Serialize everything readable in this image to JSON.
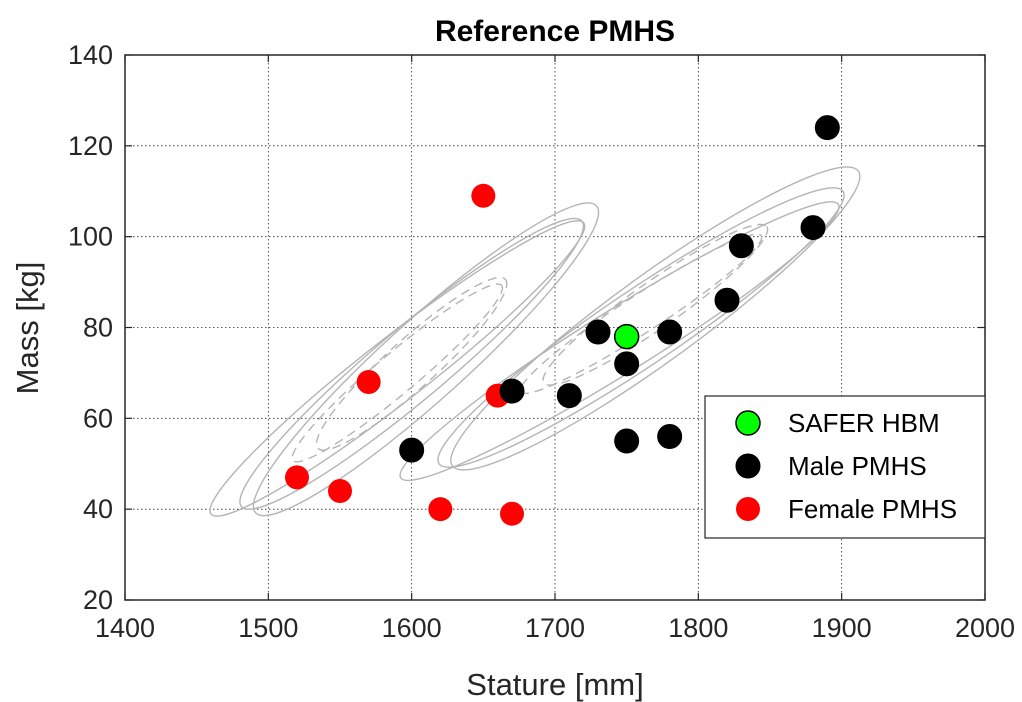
{
  "chart_data": {
    "type": "scatter",
    "title": "Reference PMHS",
    "xlabel": "Stature [mm]",
    "ylabel": "Mass [kg]",
    "xlim": [
      1400,
      2000
    ],
    "ylim": [
      20,
      140
    ],
    "xticks": [
      1400,
      1500,
      1600,
      1700,
      1800,
      1900,
      2000
    ],
    "yticks": [
      20,
      40,
      60,
      80,
      100,
      120,
      140
    ],
    "xtick_labels": [
      "1400",
      "1500",
      "1600",
      "1700",
      "1800",
      "1900",
      "2000"
    ],
    "ytick_labels": [
      "20",
      "40",
      "60",
      "80",
      "100",
      "120",
      "140"
    ],
    "grid": true,
    "legend_position": "lower-right",
    "series": [
      {
        "name": "SAFER HBM",
        "color": "#00ff00",
        "points": [
          [
            1750,
            78
          ]
        ]
      },
      {
        "name": "Male PMHS",
        "color": "#000000",
        "points": [
          [
            1890,
            124
          ],
          [
            1880,
            102
          ],
          [
            1830,
            98
          ],
          [
            1820,
            86
          ],
          [
            1730,
            79
          ],
          [
            1780,
            79
          ],
          [
            1750,
            72
          ],
          [
            1670,
            66
          ],
          [
            1710,
            65
          ],
          [
            1600,
            53
          ],
          [
            1750,
            55
          ],
          [
            1780,
            56
          ]
        ]
      },
      {
        "name": "Female PMHS",
        "color": "#ff0000",
        "points": [
          [
            1650,
            109
          ],
          [
            1570,
            68
          ],
          [
            1660,
            65
          ],
          [
            1520,
            47
          ],
          [
            1550,
            44
          ],
          [
            1620,
            40
          ],
          [
            1670,
            39
          ]
        ]
      }
    ],
    "ellipses": {
      "color": "#b4b4b4",
      "solid": [
        {
          "cx": 1590,
          "cy": 71,
          "rx": 165,
          "ry": 22,
          "deg": 38
        },
        {
          "cx": 1600,
          "cy": 72,
          "rx": 155,
          "ry": 25,
          "deg": 40
        },
        {
          "cx": 1610,
          "cy": 73,
          "rx": 160,
          "ry": 28,
          "deg": 42
        },
        {
          "cx": 1745,
          "cy": 77,
          "rx": 180,
          "ry": 22,
          "deg": 32
        },
        {
          "cx": 1760,
          "cy": 80,
          "rx": 170,
          "ry": 26,
          "deg": 34
        },
        {
          "cx": 1770,
          "cy": 82,
          "rx": 175,
          "ry": 30,
          "deg": 36
        }
      ],
      "dashed": [
        {
          "cx": 1590,
          "cy": 70,
          "rx": 95,
          "ry": 14,
          "deg": 40
        },
        {
          "cx": 1600,
          "cy": 72,
          "rx": 88,
          "ry": 17,
          "deg": 42
        },
        {
          "cx": 1760,
          "cy": 83,
          "rx": 100,
          "ry": 13,
          "deg": 33
        },
        {
          "cx": 1770,
          "cy": 85,
          "rx": 95,
          "ry": 16,
          "deg": 35
        }
      ]
    }
  }
}
